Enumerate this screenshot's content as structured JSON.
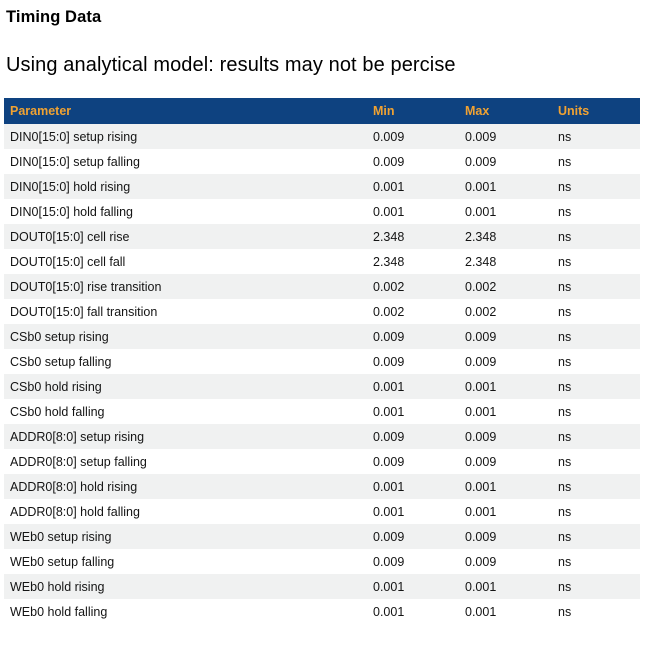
{
  "page": {
    "title": "Timing Data",
    "subtitle": "Using analytical model: results may not be percise"
  },
  "colors": {
    "header_bg": "#0E4280",
    "header_text": "#F0A232",
    "row_alt_bg": "#F0F1F1",
    "row_bg": "#FFFFFF",
    "row_text": "#141414",
    "title_text": "#000000"
  },
  "table": {
    "columns": [
      "Parameter",
      "Min",
      "Max",
      "Units"
    ],
    "rows": [
      {
        "parameter": "DIN0[15:0] setup rising",
        "min": "0.009",
        "max": "0.009",
        "units": "ns"
      },
      {
        "parameter": "DIN0[15:0] setup falling",
        "min": "0.009",
        "max": "0.009",
        "units": "ns"
      },
      {
        "parameter": "DIN0[15:0] hold rising",
        "min": "0.001",
        "max": "0.001",
        "units": "ns"
      },
      {
        "parameter": "DIN0[15:0] hold falling",
        "min": "0.001",
        "max": "0.001",
        "units": "ns"
      },
      {
        "parameter": "DOUT0[15:0] cell rise",
        "min": "2.348",
        "max": "2.348",
        "units": "ns"
      },
      {
        "parameter": "DOUT0[15:0] cell fall",
        "min": "2.348",
        "max": "2.348",
        "units": "ns"
      },
      {
        "parameter": "DOUT0[15:0] rise transition",
        "min": "0.002",
        "max": "0.002",
        "units": "ns"
      },
      {
        "parameter": "DOUT0[15:0] fall transition",
        "min": "0.002",
        "max": "0.002",
        "units": "ns"
      },
      {
        "parameter": "CSb0 setup rising",
        "min": "0.009",
        "max": "0.009",
        "units": "ns"
      },
      {
        "parameter": "CSb0 setup falling",
        "min": "0.009",
        "max": "0.009",
        "units": "ns"
      },
      {
        "parameter": "CSb0 hold rising",
        "min": "0.001",
        "max": "0.001",
        "units": "ns"
      },
      {
        "parameter": "CSb0 hold falling",
        "min": "0.001",
        "max": "0.001",
        "units": "ns"
      },
      {
        "parameter": "ADDR0[8:0] setup rising",
        "min": "0.009",
        "max": "0.009",
        "units": "ns"
      },
      {
        "parameter": "ADDR0[8:0] setup falling",
        "min": "0.009",
        "max": "0.009",
        "units": "ns"
      },
      {
        "parameter": "ADDR0[8:0] hold rising",
        "min": "0.001",
        "max": "0.001",
        "units": "ns"
      },
      {
        "parameter": "ADDR0[8:0] hold falling",
        "min": "0.001",
        "max": "0.001",
        "units": "ns"
      },
      {
        "parameter": "WEb0 setup rising",
        "min": "0.009",
        "max": "0.009",
        "units": "ns"
      },
      {
        "parameter": "WEb0 setup falling",
        "min": "0.009",
        "max": "0.009",
        "units": "ns"
      },
      {
        "parameter": "WEb0 hold rising",
        "min": "0.001",
        "max": "0.001",
        "units": "ns"
      },
      {
        "parameter": "WEb0 hold falling",
        "min": "0.001",
        "max": "0.001",
        "units": "ns"
      }
    ]
  }
}
